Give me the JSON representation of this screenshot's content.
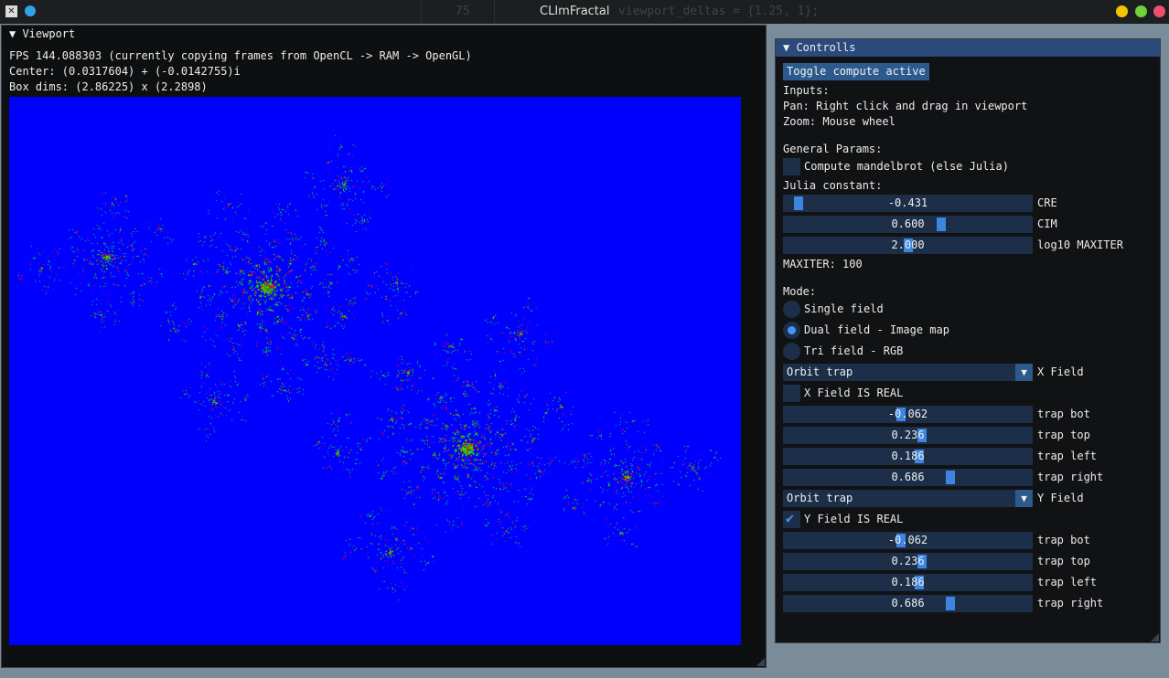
{
  "os": {
    "app_title": "CLImFractal",
    "bg_line_number": "75",
    "bg_code": "viewport_deltas = {1.25, 1};"
  },
  "viewport": {
    "title": "▼ Viewport",
    "fps_line": "FPS 144.088303 (currently copying frames from OpenCL -> RAM -> OpenGL)",
    "center_line": "Center: (0.0317604) + (-0.0142755)i",
    "box_line": "Box dims: (2.86225) x (2.2898)",
    "colors": {
      "background": "#0000ff",
      "a": "#00ff00",
      "b": "#ff0000"
    }
  },
  "controls": {
    "title": "▼ Controlls",
    "toggle_button": "Toggle compute active",
    "inputs_heading": "Inputs:",
    "pan_hint": "Pan: Right click and drag in viewport",
    "zoom_hint": "Zoom: Mouse wheel",
    "general_heading": "General Params:",
    "mandelbrot_label": "Compute mandelbrot (else Julia)",
    "mandelbrot_checked": false,
    "julia_heading": "Julia constant:",
    "cre": {
      "value": "-0.431",
      "label": "CRE",
      "frac": 0.04
    },
    "cim": {
      "value": "0.600",
      "label": "CIM",
      "frac": 0.64
    },
    "maxiter_log": {
      "value": "2.000",
      "label": "log10 MAXITER",
      "frac": 0.5
    },
    "maxiter_line": "MAXITER: 100",
    "mode_heading": "Mode:",
    "modes": [
      {
        "label": "Single field",
        "selected": false
      },
      {
        "label": "Dual field - Image map",
        "selected": true
      },
      {
        "label": "Tri field - RGB",
        "selected": false
      }
    ],
    "x_field": {
      "combo_value": "Orbit trap",
      "label": "X Field",
      "is_real_label": "X Field IS REAL",
      "is_real_checked": false,
      "params": [
        {
          "value": "-0.062",
          "label": "trap bot",
          "frac": 0.47
        },
        {
          "value": "0.236",
          "label": "trap top",
          "frac": 0.56
        },
        {
          "value": "0.186",
          "label": "trap left",
          "frac": 0.55
        },
        {
          "value": "0.686",
          "label": "trap right",
          "frac": 0.68
        }
      ]
    },
    "y_field": {
      "combo_value": "Orbit trap",
      "label": "Y Field",
      "is_real_label": "Y Field IS REAL",
      "is_real_checked": true,
      "params": [
        {
          "value": "-0.062",
          "label": "trap bot",
          "frac": 0.47
        },
        {
          "value": "0.236",
          "label": "trap top",
          "frac": 0.56
        },
        {
          "value": "0.186",
          "label": "trap left",
          "frac": 0.55
        },
        {
          "value": "0.686",
          "label": "trap right",
          "frac": 0.68
        }
      ]
    }
  }
}
